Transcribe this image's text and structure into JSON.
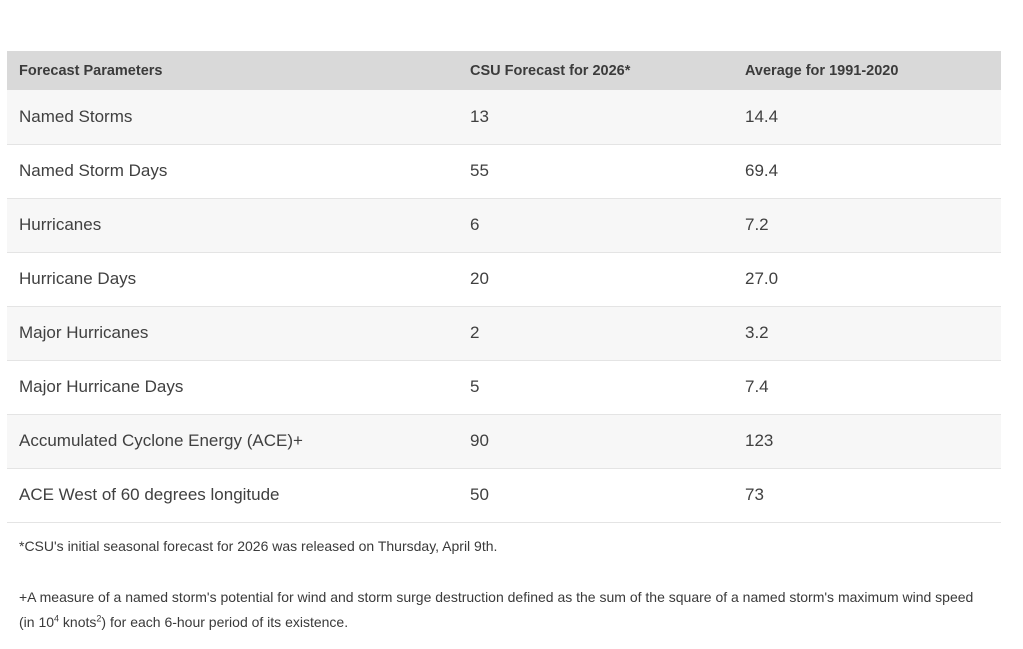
{
  "table": {
    "headers": [
      "Forecast Parameters",
      "CSU Forecast for 2026*",
      "Average for 1991-2020"
    ],
    "rows": [
      [
        "Named Storms",
        "13",
        "14.4"
      ],
      [
        "Named Storm Days",
        "55",
        "69.4"
      ],
      [
        "Hurricanes",
        "6",
        "7.2"
      ],
      [
        "Hurricane Days",
        "20",
        "27.0"
      ],
      [
        "Major Hurricanes",
        "2",
        "3.2"
      ],
      [
        "Major Hurricane Days",
        "5",
        "7.4"
      ],
      [
        "Accumulated Cyclone Energy (ACE)+",
        "90",
        "123"
      ],
      [
        "ACE West of 60 degrees longitude",
        "50",
        "73"
      ]
    ]
  },
  "footnotes": {
    "release_note": "*CSU's initial seasonal forecast for 2026 was released on Thursday, April 9th.",
    "ace_part1": "+A measure of a named storm's potential for wind and storm surge destruction defined as the sum of the square of a named storm's maximum wind speed (in 10",
    "ace_exp1": "4",
    "ace_part2": " knots",
    "ace_exp2": "2",
    "ace_part3": ") for each 6-hour period of its existence."
  }
}
